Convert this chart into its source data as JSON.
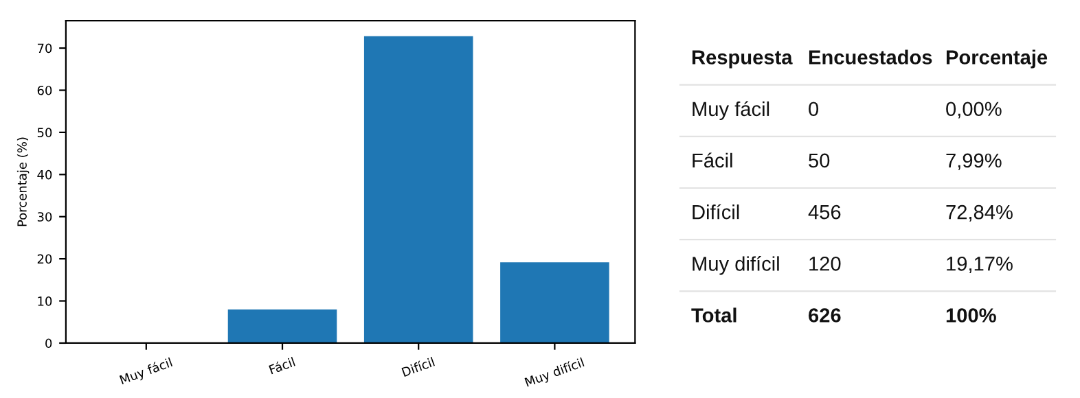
{
  "chart_data": [
    {
      "type": "bar",
      "ylabel": "Porcentaje (%)",
      "categories": [
        "Muy fácil",
        "Fácil",
        "Difícil",
        "Muy difícil"
      ],
      "values": [
        0,
        7.99,
        72.84,
        19.17
      ],
      "color": "#1f77b4",
      "ylim": [
        0,
        76.5
      ],
      "yticks": [
        0,
        10,
        20,
        30,
        40,
        50,
        60,
        70
      ],
      "grid": false
    },
    {
      "type": "other",
      "annotations": [
        "Respuesta",
        "Encuestados",
        "Porcentaje",
        "Muy fácil",
        "0",
        "0,00%",
        "Fácil",
        "50",
        "7,99%",
        "Difícil",
        "456",
        "72,84%",
        "Muy difícil",
        "120",
        "19,17%",
        "Total",
        "626",
        "100%"
      ]
    }
  ]
}
